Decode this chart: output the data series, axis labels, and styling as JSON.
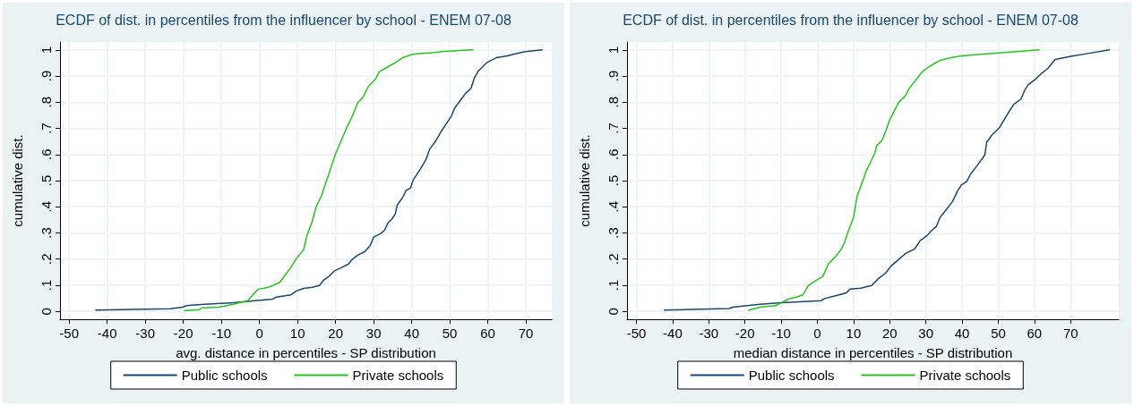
{
  "chart_data": [
    {
      "type": "line",
      "title": "ECDF of dist. in percentiles from the influencer by school - ENEM 07-08",
      "xlabel": "avg. distance in percentiles - SP distribution",
      "ylabel": "cumulative dist.",
      "xlim": [
        -52.4,
        76.8
      ],
      "xticks": [
        -50,
        -40,
        -30,
        -20,
        -10,
        0,
        10,
        20,
        30,
        40,
        50,
        60,
        70
      ],
      "ylim": [
        -0.03,
        1.03
      ],
      "yticks": [
        {
          "value": 0,
          "label": "0"
        },
        {
          "value": 0.1,
          "label": ".1"
        },
        {
          "value": 0.2,
          "label": ".2"
        },
        {
          "value": 0.3,
          "label": ".3"
        },
        {
          "value": 0.4,
          "label": ".4"
        },
        {
          "value": 0.5,
          "label": ".5"
        },
        {
          "value": 0.6,
          "label": ".6"
        },
        {
          "value": 0.7,
          "label": ".7"
        },
        {
          "value": 0.8,
          "label": ".8"
        },
        {
          "value": 0.9,
          "label": ".9"
        },
        {
          "value": 1,
          "label": "1"
        }
      ],
      "grid": true,
      "legend": "bottom",
      "marker": "none",
      "line_style": "solid",
      "series": [
        {
          "name": "Public schools",
          "color": "#1a476f",
          "x": [
            -43.0,
            -23.5,
            -20.2,
            -19.2,
            -14.5,
            -6.9,
            -1.2,
            3.5,
            4.4,
            8.2,
            9.7,
            11.6,
            13.9,
            15.8,
            16.8,
            18.2,
            19.6,
            21.5,
            23.4,
            24.3,
            25.8,
            27.7,
            29.1,
            30.0,
            31.9,
            32.9,
            33.8,
            34.8,
            35.7,
            36.2,
            37.6,
            38.5,
            39.7,
            40.4,
            42.3,
            43.7,
            44.7,
            46.1,
            47.5,
            49.0,
            50.4,
            51.3,
            52.7,
            54.1,
            55.6,
            56.5,
            57.5,
            59.8,
            62.2,
            65.1,
            66.9,
            69.8,
            74.3
          ],
          "values": [
            0.005,
            0.01,
            0.016,
            0.022,
            0.027,
            0.033,
            0.041,
            0.047,
            0.055,
            0.063,
            0.078,
            0.088,
            0.092,
            0.099,
            0.119,
            0.133,
            0.154,
            0.167,
            0.181,
            0.198,
            0.215,
            0.229,
            0.252,
            0.284,
            0.298,
            0.311,
            0.339,
            0.353,
            0.373,
            0.407,
            0.435,
            0.462,
            0.472,
            0.503,
            0.545,
            0.579,
            0.62,
            0.647,
            0.682,
            0.716,
            0.746,
            0.778,
            0.805,
            0.833,
            0.853,
            0.894,
            0.919,
            0.952,
            0.97,
            0.977,
            0.984,
            0.993,
            1.0
          ]
        },
        {
          "name": "Private schools",
          "color": "#2ac31e",
          "x": [
            -19.7,
            -15.9,
            -15.0,
            -10.7,
            -6.9,
            -3.1,
            -1.7,
            -0.3,
            2.1,
            3.5,
            5.4,
            6.8,
            8.2,
            9.7,
            11.6,
            12.5,
            13.9,
            14.9,
            16.3,
            17.2,
            18.2,
            19.1,
            20.1,
            21.5,
            22.9,
            24.3,
            25.8,
            27.2,
            28.6,
            30.5,
            31.4,
            33.8,
            35.2,
            37.6,
            40.4,
            46.1,
            48.5,
            56.1
          ],
          "values": [
            0.003,
            0.007,
            0.014,
            0.016,
            0.027,
            0.041,
            0.064,
            0.085,
            0.091,
            0.099,
            0.112,
            0.14,
            0.167,
            0.202,
            0.236,
            0.291,
            0.346,
            0.401,
            0.442,
            0.483,
            0.524,
            0.565,
            0.606,
            0.654,
            0.702,
            0.743,
            0.798,
            0.819,
            0.86,
            0.888,
            0.915,
            0.936,
            0.947,
            0.97,
            0.984,
            0.99,
            0.994,
            1.0
          ]
        }
      ]
    },
    {
      "type": "line",
      "title": "ECDF of dist. in percentiles from the influencer by school - ENEM 07-08",
      "xlabel": "median distance in percentiles - SP distribution",
      "ylabel": "cumulative dist.",
      "xlim": [
        -52.6,
        83.3
      ],
      "xticks": [
        -50,
        -40,
        -30,
        -20,
        -10,
        0,
        10,
        20,
        30,
        40,
        50,
        60,
        70
      ],
      "ylim": [
        -0.03,
        1.03
      ],
      "yticks": [
        {
          "value": 0,
          "label": "0"
        },
        {
          "value": 0.1,
          "label": ".1"
        },
        {
          "value": 0.2,
          "label": ".2"
        },
        {
          "value": 0.3,
          "label": ".3"
        },
        {
          "value": 0.4,
          "label": ".4"
        },
        {
          "value": 0.5,
          "label": ".5"
        },
        {
          "value": 0.6,
          "label": ".6"
        },
        {
          "value": 0.7,
          "label": ".7"
        },
        {
          "value": 0.8,
          "label": ".8"
        },
        {
          "value": 0.9,
          "label": ".9"
        },
        {
          "value": 1,
          "label": "1"
        }
      ],
      "grid": true,
      "legend": "bottom",
      "marker": "none",
      "line_style": "solid",
      "series": [
        {
          "name": "Public schools",
          "color": "#1a476f",
          "x": [
            -42.3,
            -24.4,
            -23.4,
            -15.9,
            -10.0,
            1.0,
            2.0,
            5.0,
            8.0,
            9.0,
            12.0,
            15.0,
            16.9,
            18.9,
            20.4,
            22.4,
            24.4,
            26.9,
            28.4,
            30.4,
            31.4,
            32.9,
            33.9,
            35.9,
            37.4,
            38.8,
            39.8,
            41.3,
            42.3,
            43.8,
            45.3,
            46.3,
            46.8,
            48.3,
            50.3,
            51.8,
            53.3,
            54.3,
            56.3,
            57.3,
            58.3,
            60.3,
            61.8,
            63.7,
            65.7,
            70.7,
            74.7,
            80.7
          ],
          "values": [
            0.005,
            0.011,
            0.016,
            0.027,
            0.033,
            0.041,
            0.049,
            0.06,
            0.071,
            0.085,
            0.089,
            0.099,
            0.126,
            0.147,
            0.174,
            0.198,
            0.222,
            0.239,
            0.27,
            0.291,
            0.307,
            0.325,
            0.359,
            0.394,
            0.421,
            0.462,
            0.483,
            0.497,
            0.524,
            0.551,
            0.579,
            0.599,
            0.647,
            0.675,
            0.702,
            0.737,
            0.771,
            0.792,
            0.812,
            0.846,
            0.867,
            0.888,
            0.908,
            0.929,
            0.963,
            0.977,
            0.986,
            1.0
          ]
        },
        {
          "name": "Private schools",
          "color": "#2ac31e",
          "x": [
            -18.9,
            -15.9,
            -11.5,
            -10.0,
            -8.0,
            -5.0,
            -4.0,
            -2.5,
            0.0,
            1.5,
            3.0,
            5.0,
            6.5,
            7.5,
            8.5,
            10.0,
            11.0,
            12.5,
            13.5,
            14.5,
            15.9,
            16.4,
            17.9,
            18.9,
            19.9,
            20.9,
            22.4,
            24.4,
            25.4,
            27.4,
            28.9,
            30.9,
            33.9,
            36.9,
            39.8,
            45.8,
            55.8,
            61.3
          ],
          "values": [
            0.005,
            0.016,
            0.022,
            0.033,
            0.047,
            0.058,
            0.064,
            0.099,
            0.122,
            0.133,
            0.181,
            0.209,
            0.236,
            0.263,
            0.305,
            0.359,
            0.442,
            0.497,
            0.538,
            0.565,
            0.606,
            0.634,
            0.654,
            0.689,
            0.73,
            0.757,
            0.798,
            0.826,
            0.853,
            0.888,
            0.915,
            0.936,
            0.96,
            0.97,
            0.977,
            0.984,
            0.994,
            1.0
          ]
        }
      ]
    }
  ]
}
